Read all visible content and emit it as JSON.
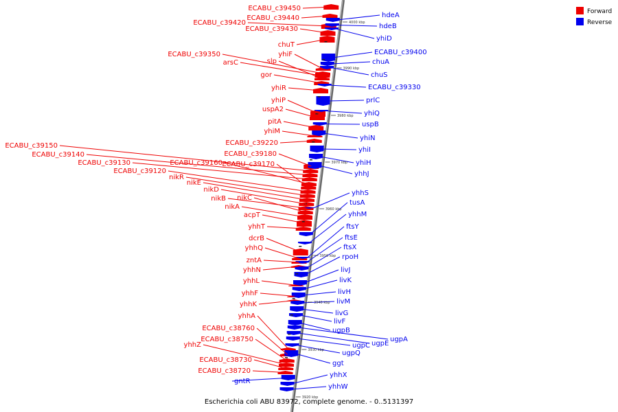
{
  "caption": "Escherichia coli ABU 83972, complete genome. - 0..5131397",
  "legend": {
    "forward": {
      "label": "Forward",
      "color": "#ee0000"
    },
    "reverse": {
      "label": "Reverse",
      "color": "#0000ee"
    }
  },
  "ticks": [
    "4000 kbp",
    "3990 kbp",
    "3980 kbp",
    "3970 kbp",
    "3960 kbp",
    "3950 kbp",
    "3940 kbp",
    "3930 kbp",
    "3920 kbp"
  ],
  "forward_genes": [
    "ECABU_c39450",
    "ECABU_c39440",
    "ECABU_c39420",
    "ECABU_c39430",
    "chuT",
    "yhiF",
    "ECABU_c39350",
    "arsC",
    "slp",
    "gor",
    "yhiR",
    "yhiP",
    "uspA2",
    "pitA",
    "yhiM",
    "ECABU_c39220",
    "ECABU_c39180",
    "ECABU_c39150",
    "ECABU_c39140",
    "ECABU_c39130",
    "ECABU_c39160",
    "ECABU_c39170",
    "ECABU_c39120",
    "nikR",
    "nikE",
    "nikD",
    "nikB",
    "nikC",
    "nikA",
    "acpT",
    "yhhT",
    "dcrB",
    "yhhQ",
    "zntA",
    "yhhN",
    "yhhL",
    "yhhF",
    "yhhK",
    "yhhA",
    "ECABU_c38760",
    "ECABU_c38750",
    "yhhZ",
    "ECABU_c38730",
    "ECABU_c38720"
  ],
  "reverse_genes": [
    "hdeA",
    "hdeB",
    "yhiD",
    "ECABU_c39400",
    "chuA",
    "chuS",
    "ECABU_c39330",
    "prlC",
    "yhiQ",
    "uspB",
    "yhiN",
    "yhiI",
    "yhiH",
    "yhhJ",
    "yhhS",
    "tusA",
    "yhhM",
    "ftsY",
    "ftsE",
    "ftsX",
    "rpoH",
    "livJ",
    "livK",
    "livH",
    "livM",
    "livG",
    "livF",
    "ugpB",
    "ugpA",
    "ugpE",
    "ugpC",
    "ugpQ",
    "ggt",
    "gntR",
    "yhhX",
    "yhhW"
  ]
}
